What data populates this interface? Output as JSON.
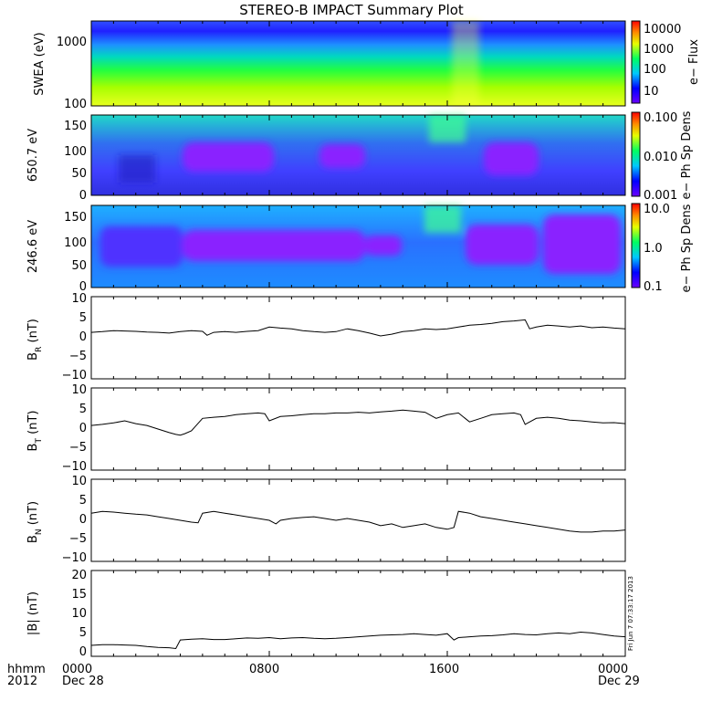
{
  "title": "STEREO-B IMPACT Summary Plot",
  "footer": {
    "left_labels": [
      "hhmm",
      "2012"
    ],
    "x_tick_labels": [
      "0000",
      "0800",
      "1600",
      "0000"
    ],
    "date_labels": [
      "Dec 28",
      "Dec 29"
    ],
    "timestamp": "Fri Jun  7 07:33:17 2013"
  },
  "chart_data": [
    {
      "type": "heatmap",
      "ylabel": "SWEA (eV)",
      "y_scale": "log",
      "ylim": [
        100,
        2000
      ],
      "y_ticks": [
        "1000",
        "100"
      ],
      "colorbar": {
        "label": "e− Flux",
        "ticks": [
          "10000",
          "1000",
          "100",
          "10"
        ],
        "scale": "log",
        "range": [
          2,
          10000
        ]
      },
      "x_range_hours": [
        0,
        24
      ]
    },
    {
      "type": "heatmap",
      "ylabel": "650.7 eV",
      "ylim": [
        0,
        180
      ],
      "y_ticks": [
        "150",
        "100",
        "50",
        "0"
      ],
      "colorbar": {
        "label": "e− Ph Sp Dens",
        "ticks": [
          "0.100",
          "0.010",
          "0.001"
        ],
        "scale": "log",
        "range": [
          0.001,
          0.2
        ]
      },
      "x_range_hours": [
        0,
        24
      ]
    },
    {
      "type": "heatmap",
      "ylabel": "246.6 eV",
      "ylim": [
        0,
        180
      ],
      "y_ticks": [
        "150",
        "100",
        "50",
        "0"
      ],
      "colorbar": {
        "label": "e− Ph Sp Dens",
        "ticks": [
          "10.0",
          "1.0",
          "0.1"
        ],
        "scale": "log",
        "range": [
          0.08,
          12
        ]
      },
      "x_range_hours": [
        0,
        24
      ]
    },
    {
      "type": "line",
      "ylabel": "B_R (nT)",
      "ylim": [
        -12,
        11
      ],
      "y_ticks": [
        "10",
        "5",
        "0",
        "−5",
        "−10"
      ],
      "x": [
        0,
        0.5,
        1.0,
        1.5,
        2.0,
        2.5,
        3.0,
        3.5,
        4.0,
        4.5,
        5.0,
        5.2,
        5.5,
        6.0,
        6.5,
        7.0,
        7.5,
        8.0,
        8.5,
        9.0,
        9.5,
        10.0,
        10.5,
        11.0,
        11.5,
        12.0,
        12.5,
        13.0,
        13.5,
        14.0,
        14.5,
        15.0,
        15.5,
        16.0,
        16.5,
        17.0,
        17.5,
        18.0,
        18.5,
        19.0,
        19.5,
        19.7,
        20.0,
        20.5,
        21.0,
        21.5,
        22.0,
        22.5,
        23.0,
        23.5,
        24.0
      ],
      "y": [
        1.0,
        1.2,
        1.5,
        1.4,
        1.3,
        1.1,
        1.0,
        0.8,
        1.2,
        1.5,
        1.3,
        0.2,
        1.0,
        1.2,
        1.0,
        1.3,
        1.5,
        2.5,
        2.2,
        2.0,
        1.5,
        1.2,
        1.0,
        1.2,
        2.0,
        1.5,
        0.8,
        0.0,
        0.5,
        1.2,
        1.5,
        2.0,
        1.8,
        2.0,
        2.5,
        3.0,
        3.2,
        3.5,
        4.0,
        4.2,
        4.5,
        2.0,
        2.5,
        3.0,
        2.8,
        2.5,
        2.8,
        2.3,
        2.5,
        2.2,
        2.0
      ]
    },
    {
      "type": "line",
      "ylabel": "B_T (nT)",
      "ylim": [
        -12,
        11
      ],
      "y_ticks": [
        "10",
        "5",
        "0",
        "−5",
        "−10"
      ],
      "x": [
        0,
        0.5,
        1.0,
        1.5,
        2.0,
        2.5,
        3.0,
        3.5,
        3.8,
        4.0,
        4.2,
        4.5,
        5.0,
        5.5,
        6.0,
        6.5,
        7.0,
        7.5,
        7.8,
        8.0,
        8.5,
        9.0,
        9.5,
        10.0,
        10.5,
        11.0,
        11.5,
        12.0,
        12.5,
        13.0,
        13.5,
        14.0,
        14.5,
        15.0,
        15.5,
        16.0,
        16.5,
        17.0,
        17.5,
        18.0,
        18.5,
        19.0,
        19.3,
        19.5,
        20.0,
        20.5,
        21.0,
        21.5,
        22.0,
        22.5,
        23.0,
        23.5,
        24.0
      ],
      "y": [
        0.5,
        0.8,
        1.2,
        1.8,
        1.0,
        0.5,
        -0.5,
        -1.5,
        -2.0,
        -2.2,
        -1.8,
        -1.0,
        2.5,
        2.8,
        3.0,
        3.5,
        3.8,
        4.0,
        3.8,
        1.8,
        3.0,
        3.2,
        3.5,
        3.8,
        3.8,
        4.0,
        4.0,
        4.2,
        4.0,
        4.3,
        4.5,
        4.8,
        4.5,
        4.2,
        2.5,
        3.5,
        4.0,
        1.5,
        2.5,
        3.5,
        3.8,
        4.0,
        3.5,
        0.8,
        2.5,
        2.8,
        2.5,
        2.0,
        1.8,
        1.5,
        1.2,
        1.3,
        1.0
      ]
    },
    {
      "type": "line",
      "ylabel": "B_N (nT)",
      "ylim": [
        -12,
        11
      ],
      "y_ticks": [
        "10",
        "5",
        "0",
        "−5",
        "−10"
      ],
      "x": [
        0,
        0.5,
        1.0,
        1.5,
        2.0,
        2.5,
        3.0,
        3.5,
        4.0,
        4.5,
        4.8,
        5.0,
        5.5,
        6.0,
        6.5,
        7.0,
        7.5,
        8.0,
        8.3,
        8.5,
        9.0,
        9.5,
        10.0,
        10.5,
        11.0,
        11.5,
        12.0,
        12.5,
        13.0,
        13.5,
        14.0,
        14.5,
        15.0,
        15.5,
        16.0,
        16.3,
        16.5,
        17.0,
        17.5,
        18.0,
        18.5,
        19.0,
        19.5,
        20.0,
        20.5,
        21.0,
        21.5,
        22.0,
        22.5,
        23.0,
        23.5,
        24.0
      ],
      "y": [
        1.5,
        2.0,
        1.8,
        1.5,
        1.2,
        1.0,
        0.5,
        0.0,
        -0.5,
        -1.0,
        -1.2,
        1.5,
        2.0,
        1.5,
        1.0,
        0.5,
        0.0,
        -0.5,
        -1.5,
        -0.5,
        0.0,
        0.3,
        0.5,
        0.0,
        -0.5,
        0.0,
        -0.5,
        -1.0,
        -2.0,
        -1.5,
        -2.5,
        -2.0,
        -1.5,
        -2.5,
        -3.0,
        -2.5,
        2.0,
        1.5,
        0.5,
        0.0,
        -0.5,
        -1.0,
        -1.5,
        -2.0,
        -2.5,
        -3.0,
        -3.5,
        -3.8,
        -3.8,
        -3.5,
        -3.5,
        -3.2
      ]
    },
    {
      "type": "line",
      "ylabel": "|B| (nT)",
      "ylim": [
        -1,
        21
      ],
      "y_ticks": [
        "20",
        "15",
        "10",
        "5",
        "0"
      ],
      "x": [
        0,
        0.5,
        1.0,
        1.5,
        2.0,
        2.5,
        3.0,
        3.5,
        3.8,
        4.0,
        4.5,
        5.0,
        5.5,
        6.0,
        6.5,
        7.0,
        7.5,
        8.0,
        8.5,
        9.0,
        9.5,
        10.0,
        10.5,
        11.0,
        11.5,
        12.0,
        12.5,
        13.0,
        13.5,
        14.0,
        14.5,
        15.0,
        15.5,
        16.0,
        16.3,
        16.5,
        17.0,
        17.5,
        18.0,
        18.5,
        19.0,
        19.5,
        20.0,
        20.5,
        21.0,
        21.5,
        22.0,
        22.5,
        23.0,
        23.5,
        24.0
      ],
      "y": [
        1.8,
        2.0,
        2.0,
        1.9,
        1.8,
        1.5,
        1.3,
        1.2,
        1.0,
        3.2,
        3.4,
        3.5,
        3.3,
        3.3,
        3.5,
        3.7,
        3.6,
        3.8,
        3.5,
        3.7,
        3.8,
        3.6,
        3.5,
        3.6,
        3.8,
        4.0,
        4.2,
        4.4,
        4.5,
        4.6,
        4.8,
        4.6,
        4.4,
        4.8,
        3.2,
        3.8,
        4.0,
        4.2,
        4.3,
        4.5,
        4.8,
        4.6,
        4.5,
        4.8,
        5.0,
        4.8,
        5.2,
        5.0,
        4.6,
        4.2,
        4.0
      ]
    }
  ]
}
